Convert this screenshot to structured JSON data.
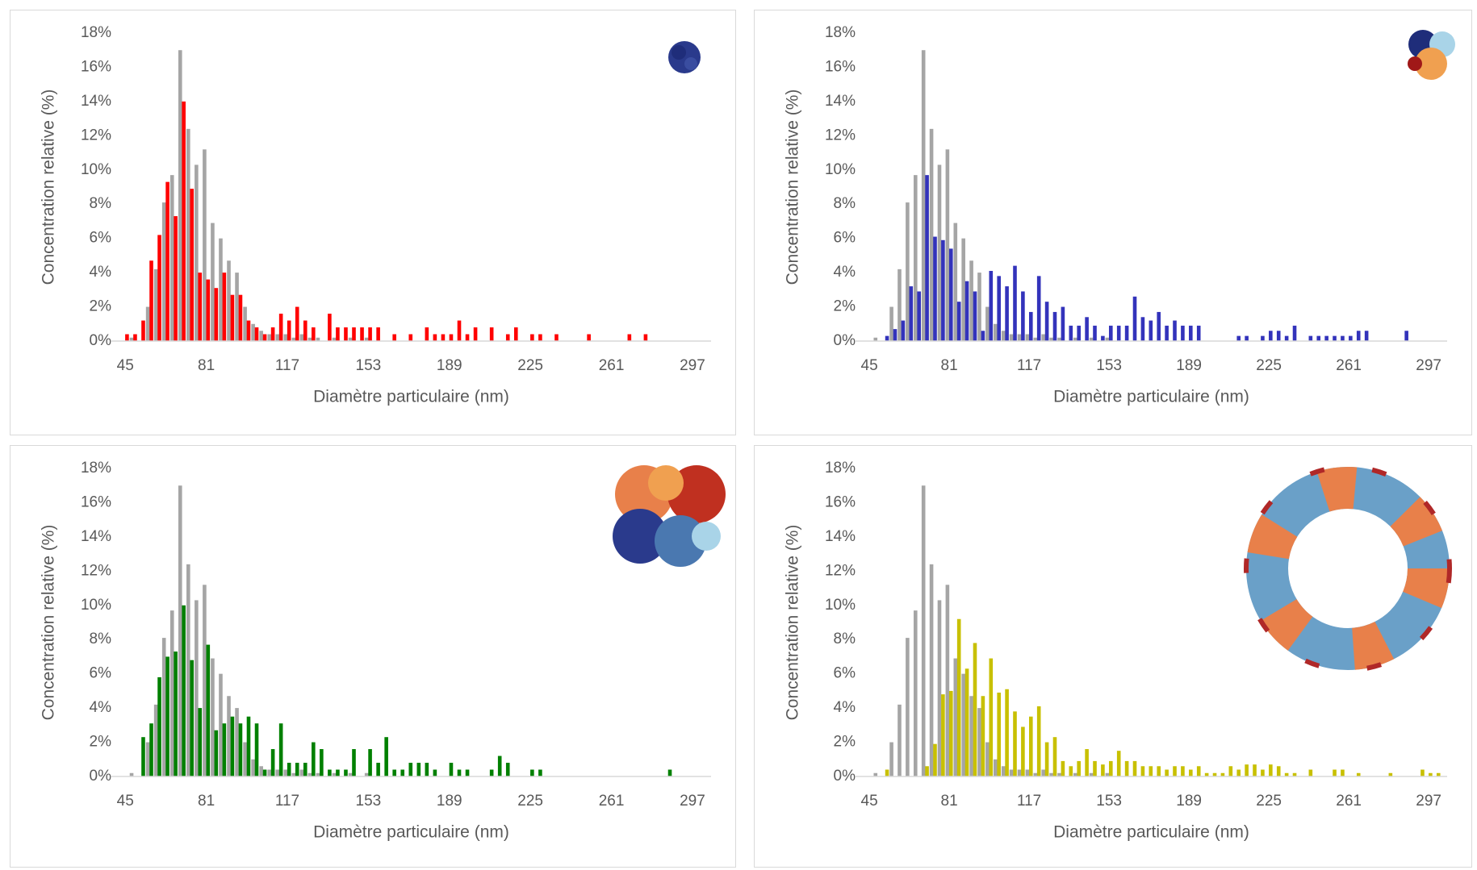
{
  "chart_data": [
    {
      "type": "bar",
      "xlabel": "Diamètre particulaire (nm)",
      "ylabel": "Concentration relative (%)",
      "xlim": [
        41.7,
        302.4
      ],
      "xticks": [
        45,
        81,
        117,
        153,
        189,
        225,
        261,
        297
      ],
      "ylim": [
        0,
        18
      ],
      "yticks": [
        {
          "value": 0,
          "label": "0%"
        },
        {
          "value": 2,
          "label": "2%"
        },
        {
          "value": 4,
          "label": "4%"
        },
        {
          "value": 6,
          "label": "6%"
        },
        {
          "value": 8,
          "label": "8%"
        },
        {
          "value": 10,
          "label": "10%"
        },
        {
          "value": 12,
          "label": "12%"
        },
        {
          "value": 14,
          "label": "14%"
        },
        {
          "value": 16,
          "label": "16%"
        },
        {
          "value": 18,
          "label": "18%"
        }
      ],
      "grid": false,
      "series": [
        {
          "color": "#a5a5a5",
          "x": [
            48.6,
            55.8,
            59.4,
            63,
            66.6,
            70.2,
            73.8,
            77.4,
            81,
            84.6,
            88.2,
            91.8,
            95.4,
            99,
            102.6,
            106.2,
            109.8,
            113.4,
            117,
            120.6,
            124.2,
            127.8,
            131.4,
            138.6,
            145.8,
            153
          ],
          "values": [
            0.2,
            2.0,
            4.2,
            8.1,
            9.7,
            17.0,
            12.4,
            10.3,
            11.2,
            6.9,
            6.0,
            4.7,
            4.0,
            2.0,
            1.0,
            0.6,
            0.4,
            0.4,
            0.4,
            0.2,
            0.4,
            0.2,
            0.2,
            0.2,
            0.2,
            0.2
          ]
        },
        {
          "color": "#ff0000",
          "x": [
            45,
            48.6,
            52.2,
            55.8,
            59.4,
            63,
            66.6,
            70.2,
            73.8,
            77.4,
            81,
            84.6,
            88.2,
            91.8,
            95.4,
            99,
            102.6,
            106.2,
            109.8,
            113.4,
            117,
            120.6,
            124.2,
            127.8,
            135,
            138.6,
            142.2,
            145.8,
            149.4,
            153,
            156.6,
            163.8,
            171,
            178.2,
            181.8,
            185.4,
            189,
            192.6,
            196.2,
            199.8,
            207,
            214.2,
            217.8,
            225,
            228.6,
            235.8,
            250.2,
            268.2,
            275.4
          ],
          "values": [
            0.4,
            0.4,
            1.2,
            4.7,
            6.2,
            9.3,
            7.3,
            14.0,
            8.9,
            4.0,
            3.6,
            3.1,
            4.0,
            2.7,
            2.7,
            1.2,
            0.8,
            0.4,
            0.8,
            1.6,
            1.2,
            2.0,
            1.2,
            0.8,
            1.6,
            0.8,
            0.8,
            0.8,
            0.8,
            0.8,
            0.8,
            0.4,
            0.4,
            0.8,
            0.4,
            0.4,
            0.4,
            1.2,
            0.4,
            0.8,
            0.8,
            0.4,
            0.8,
            0.4,
            0.4,
            0.4,
            0.4,
            0.4,
            0.4
          ]
        }
      ]
    },
    {
      "type": "bar",
      "xlabel": "Diamètre particulaire (nm)",
      "ylabel": "Concentration relative (%)",
      "xlim": [
        41.7,
        302.4
      ],
      "xticks": [
        45,
        81,
        117,
        153,
        189,
        225,
        261,
        297
      ],
      "ylim": [
        0,
        18
      ],
      "yticks": [
        {
          "value": 0,
          "label": "0%"
        },
        {
          "value": 2,
          "label": "2%"
        },
        {
          "value": 4,
          "label": "4%"
        },
        {
          "value": 6,
          "label": "6%"
        },
        {
          "value": 8,
          "label": "8%"
        },
        {
          "value": 10,
          "label": "10%"
        },
        {
          "value": 12,
          "label": "12%"
        },
        {
          "value": 14,
          "label": "14%"
        },
        {
          "value": 16,
          "label": "16%"
        },
        {
          "value": 18,
          "label": "18%"
        }
      ],
      "grid": false,
      "series": [
        {
          "color": "#a5a5a5",
          "x": [
            48.6,
            55.8,
            59.4,
            63,
            66.6,
            70.2,
            73.8,
            77.4,
            81,
            84.6,
            88.2,
            91.8,
            95.4,
            99,
            102.6,
            106.2,
            109.8,
            113.4,
            117,
            120.6,
            124.2,
            127.8,
            131.4,
            138.6,
            145.8,
            153
          ],
          "values": [
            0.2,
            2.0,
            4.2,
            8.1,
            9.7,
            17.0,
            12.4,
            10.3,
            11.2,
            6.9,
            6.0,
            4.7,
            4.0,
            2.0,
            1.0,
            0.6,
            0.4,
            0.4,
            0.4,
            0.2,
            0.4,
            0.2,
            0.2,
            0.2,
            0.2,
            0.2
          ]
        },
        {
          "color": "#3333bb",
          "x": [
            52.2,
            55.8,
            59.4,
            63,
            66.6,
            70.2,
            73.8,
            77.4,
            81,
            84.6,
            88.2,
            91.8,
            95.4,
            99,
            102.6,
            106.2,
            109.8,
            113.4,
            117,
            120.6,
            124.2,
            127.8,
            131.4,
            135,
            138.6,
            142.2,
            145.8,
            149.4,
            153,
            156.6,
            160.2,
            163.8,
            167.4,
            171,
            174.6,
            178.2,
            181.8,
            185.4,
            189,
            192.6,
            210.6,
            214.2,
            221.4,
            225,
            228.6,
            232.2,
            235.8,
            243,
            246.6,
            250.2,
            253.8,
            257.4,
            261,
            264.6,
            268.2,
            286.2
          ],
          "values": [
            0.3,
            0.7,
            1.2,
            3.2,
            2.9,
            9.7,
            6.1,
            5.9,
            5.4,
            2.3,
            3.5,
            2.9,
            0.6,
            4.1,
            3.8,
            3.2,
            4.4,
            2.9,
            1.7,
            3.8,
            2.3,
            1.7,
            2.0,
            0.9,
            0.9,
            1.4,
            0.9,
            0.3,
            0.9,
            0.9,
            0.9,
            2.6,
            1.4,
            1.2,
            1.7,
            0.9,
            1.2,
            0.9,
            0.9,
            0.9,
            0.3,
            0.3,
            0.3,
            0.6,
            0.6,
            0.3,
            0.9,
            0.3,
            0.3,
            0.3,
            0.3,
            0.3,
            0.3,
            0.6,
            0.6,
            0.6
          ]
        }
      ]
    },
    {
      "type": "bar",
      "xlabel": "Diamètre particulaire (nm)",
      "ylabel": "Concentration relative (%)",
      "xlim": [
        41.7,
        302.4
      ],
      "xticks": [
        45,
        81,
        117,
        153,
        189,
        225,
        261,
        297
      ],
      "ylim": [
        0,
        18
      ],
      "yticks": [
        {
          "value": 0,
          "label": "0%"
        },
        {
          "value": 2,
          "label": "2%"
        },
        {
          "value": 4,
          "label": "4%"
        },
        {
          "value": 6,
          "label": "6%"
        },
        {
          "value": 8,
          "label": "8%"
        },
        {
          "value": 10,
          "label": "10%"
        },
        {
          "value": 12,
          "label": "12%"
        },
        {
          "value": 14,
          "label": "14%"
        },
        {
          "value": 16,
          "label": "16%"
        },
        {
          "value": 18,
          "label": "18%"
        }
      ],
      "grid": false,
      "series": [
        {
          "color": "#a5a5a5",
          "x": [
            48.6,
            55.8,
            59.4,
            63,
            66.6,
            70.2,
            73.8,
            77.4,
            81,
            84.6,
            88.2,
            91.8,
            95.4,
            99,
            102.6,
            106.2,
            109.8,
            113.4,
            117,
            120.6,
            124.2,
            127.8,
            131.4,
            138.6,
            145.8,
            153
          ],
          "values": [
            0.2,
            2.0,
            4.2,
            8.1,
            9.7,
            17.0,
            12.4,
            10.3,
            11.2,
            6.9,
            6.0,
            4.7,
            4.0,
            2.0,
            1.0,
            0.6,
            0.4,
            0.4,
            0.4,
            0.2,
            0.4,
            0.2,
            0.2,
            0.2,
            0.2,
            0.2
          ]
        },
        {
          "color": "#008000",
          "x": [
            52.2,
            55.8,
            59.4,
            63,
            66.6,
            70.2,
            73.8,
            77.4,
            81,
            84.6,
            88.2,
            91.8,
            95.4,
            99,
            102.6,
            106.2,
            109.8,
            113.4,
            117,
            120.6,
            124.2,
            127.8,
            131.4,
            135,
            138.6,
            142.2,
            145.8,
            153,
            156.6,
            160.2,
            163.8,
            167.4,
            171,
            174.6,
            178.2,
            181.8,
            189,
            192.6,
            196.2,
            207,
            210.6,
            214.2,
            225,
            228.6,
            286.2
          ],
          "values": [
            2.3,
            3.1,
            5.8,
            7.0,
            7.3,
            10.0,
            6.8,
            4.0,
            7.7,
            2.7,
            3.1,
            3.5,
            3.1,
            3.5,
            3.1,
            0.4,
            1.6,
            3.1,
            0.8,
            0.8,
            0.8,
            2.0,
            1.6,
            0.4,
            0.4,
            0.4,
            1.6,
            1.6,
            0.8,
            2.3,
            0.4,
            0.4,
            0.8,
            0.8,
            0.8,
            0.4,
            0.8,
            0.4,
            0.4,
            0.4,
            1.2,
            0.8,
            0.4,
            0.4,
            0.4
          ]
        }
      ]
    },
    {
      "type": "bar",
      "xlabel": "Diamètre particulaire (nm)",
      "ylabel": "Concentration relative (%)",
      "xlim": [
        41.7,
        302.4
      ],
      "xticks": [
        45,
        81,
        117,
        153,
        189,
        225,
        261,
        297
      ],
      "ylim": [
        0,
        18
      ],
      "yticks": [
        {
          "value": 0,
          "label": "0%"
        },
        {
          "value": 2,
          "label": "2%"
        },
        {
          "value": 4,
          "label": "4%"
        },
        {
          "value": 6,
          "label": "6%"
        },
        {
          "value": 8,
          "label": "8%"
        },
        {
          "value": 10,
          "label": "10%"
        },
        {
          "value": 12,
          "label": "12%"
        },
        {
          "value": 14,
          "label": "14%"
        },
        {
          "value": 16,
          "label": "16%"
        },
        {
          "value": 18,
          "label": "18%"
        }
      ],
      "grid": false,
      "series": [
        {
          "color": "#a5a5a5",
          "x": [
            48.6,
            55.8,
            59.4,
            63,
            66.6,
            70.2,
            73.8,
            77.4,
            81,
            84.6,
            88.2,
            91.8,
            95.4,
            99,
            102.6,
            106.2,
            109.8,
            113.4,
            117,
            120.6,
            124.2,
            127.8,
            131.4,
            138.6,
            145.8,
            153
          ],
          "values": [
            0.2,
            2.0,
            4.2,
            8.1,
            9.7,
            17.0,
            12.4,
            10.3,
            11.2,
            6.9,
            6.0,
            4.7,
            4.0,
            2.0,
            1.0,
            0.6,
            0.4,
            0.4,
            0.4,
            0.2,
            0.4,
            0.2,
            0.2,
            0.2,
            0.2,
            0.2
          ]
        },
        {
          "color": "#c8c000",
          "x": [
            52.2,
            70.2,
            73.8,
            77.4,
            81,
            84.6,
            88.2,
            91.8,
            95.4,
            99,
            102.6,
            106.2,
            109.8,
            113.4,
            117,
            120.6,
            124.2,
            127.8,
            131.4,
            135,
            138.6,
            142.2,
            145.8,
            149.4,
            153,
            156.6,
            160.2,
            163.8,
            167.4,
            171,
            174.6,
            178.2,
            181.8,
            185.4,
            189,
            192.6,
            196.2,
            199.8,
            203.4,
            207,
            210.6,
            214.2,
            217.8,
            221.4,
            225,
            228.6,
            232.2,
            235.8,
            243,
            253.8,
            257.4,
            264.6,
            279,
            293.4,
            297,
            300.6
          ],
          "values": [
            0.4,
            0.6,
            1.9,
            4.8,
            5.0,
            9.2,
            6.3,
            7.8,
            4.7,
            6.9,
            4.9,
            5.1,
            3.8,
            2.9,
            3.5,
            4.1,
            2.0,
            2.3,
            0.9,
            0.6,
            0.9,
            1.6,
            0.9,
            0.7,
            0.9,
            1.5,
            0.9,
            0.9,
            0.6,
            0.6,
            0.6,
            0.4,
            0.6,
            0.6,
            0.4,
            0.6,
            0.2,
            0.2,
            0.2,
            0.6,
            0.4,
            0.7,
            0.7,
            0.4,
            0.7,
            0.6,
            0.2,
            0.2,
            0.4,
            0.4,
            0.4,
            0.2,
            0.2,
            0.4,
            0.2,
            0.2
          ]
        }
      ]
    }
  ]
}
